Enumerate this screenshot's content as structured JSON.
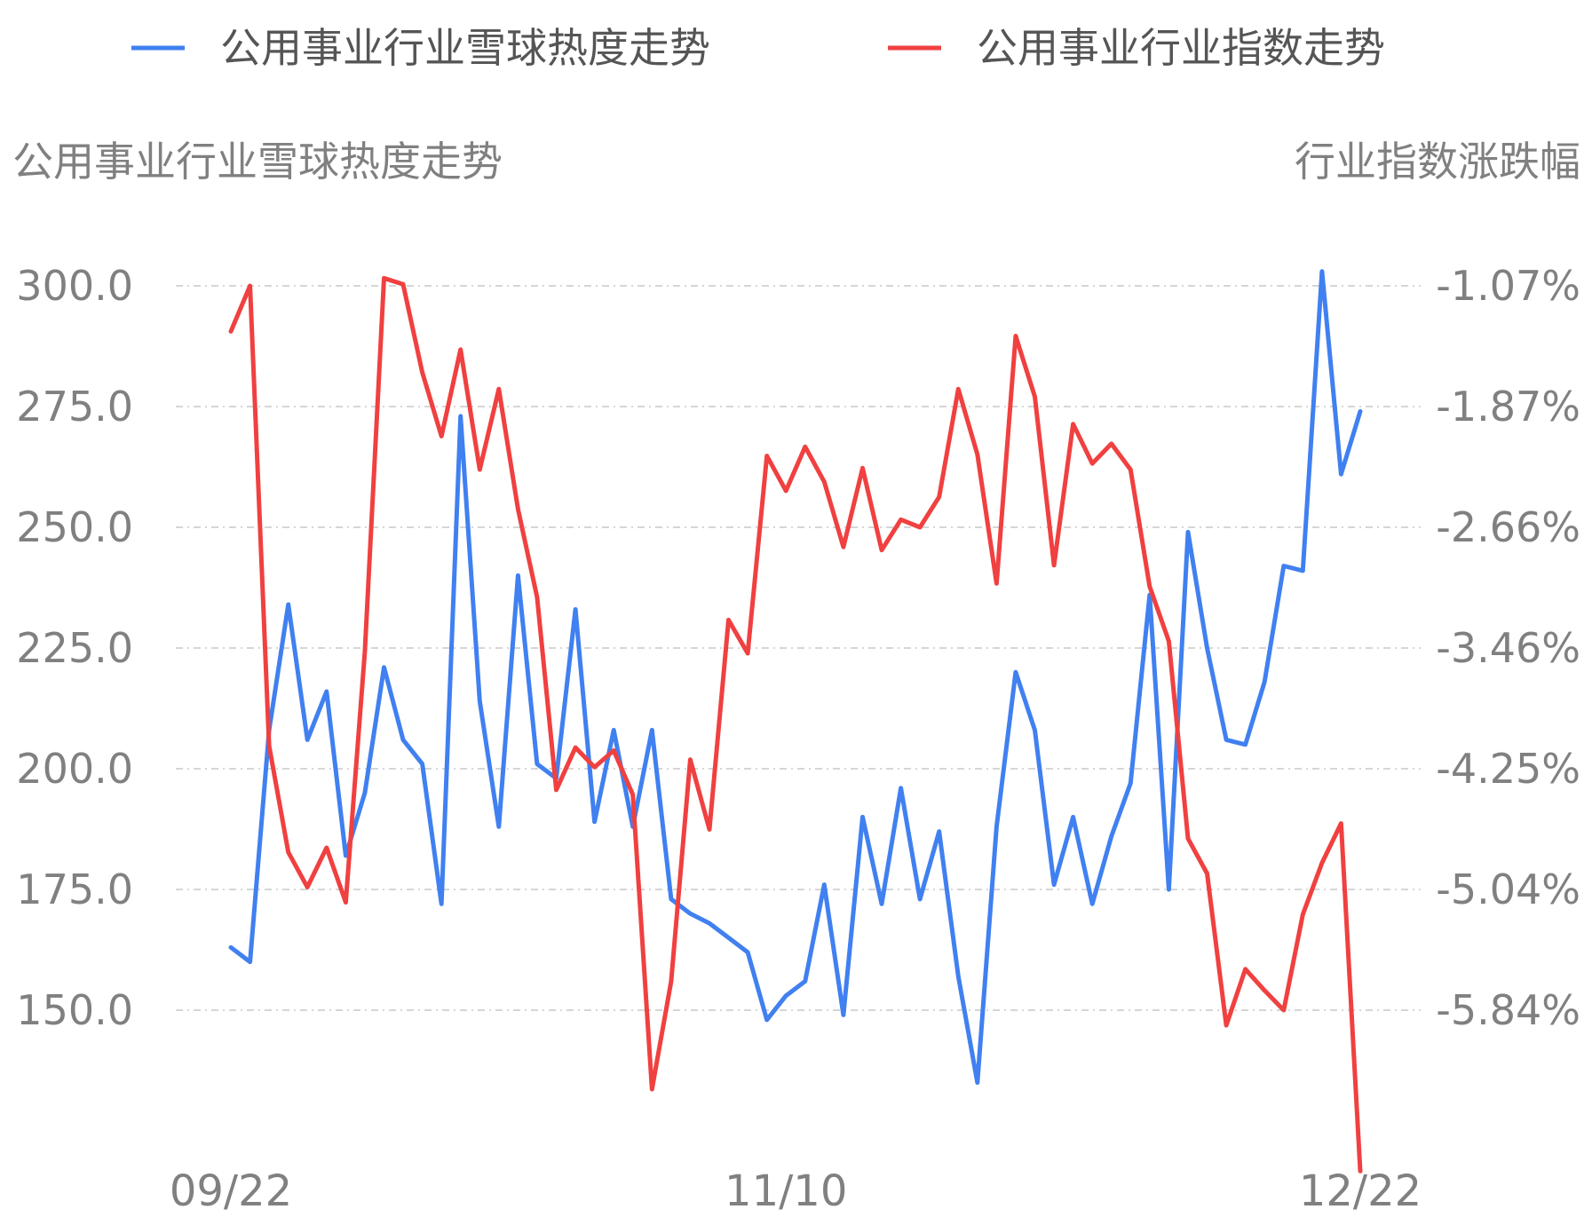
{
  "chart_data": {
    "type": "line",
    "legend_position": "top",
    "grid": true,
    "x_labels": [
      "09/22",
      "11/10",
      "12/22"
    ],
    "left_axis": {
      "title": "公用事业行业雪球热度走势",
      "ticks": [
        "300.0",
        "275.0",
        "250.0",
        "225.0",
        "200.0",
        "175.0",
        "150.0"
      ],
      "ylim": [
        150,
        300
      ]
    },
    "right_axis": {
      "title": "行业指数涨跌幅",
      "ticks": [
        "-1.07%",
        "-1.87%",
        "-2.66%",
        "-3.46%",
        "-4.25%",
        "-5.04%",
        "-5.84%"
      ],
      "ylim": [
        -5.84,
        -1.07
      ]
    },
    "series": [
      {
        "name": "公用事业行业雪球热度走势",
        "axis": "left",
        "color": "#4080F0",
        "values": [
          163,
          160,
          208,
          234,
          206,
          216,
          182,
          195,
          221,
          206,
          201,
          172,
          273,
          214,
          188,
          240,
          201,
          198,
          233,
          189,
          208,
          188,
          208,
          173,
          170,
          168,
          165,
          162,
          148,
          153,
          156,
          176,
          149,
          190,
          172,
          196,
          173,
          187,
          157,
          135,
          188,
          220,
          208,
          176,
          190,
          172,
          186,
          197,
          236,
          175,
          249,
          225,
          206,
          205,
          218,
          242,
          241,
          303,
          261,
          274
        ]
      },
      {
        "name": "公用事业行业指数走势",
        "axis": "right",
        "color": "#F04040",
        "values": [
          -1.37,
          -1.07,
          -4.1,
          -4.8,
          -5.03,
          -4.77,
          -5.13,
          -3.48,
          -1.02,
          -1.06,
          -1.64,
          -2.06,
          -1.49,
          -2.28,
          -1.75,
          -2.54,
          -3.12,
          -4.39,
          -4.11,
          -4.24,
          -4.13,
          -4.42,
          -6.36,
          -5.65,
          -4.19,
          -4.65,
          -3.27,
          -3.49,
          -2.19,
          -2.42,
          -2.13,
          -2.36,
          -2.79,
          -2.27,
          -2.81,
          -2.61,
          -2.66,
          -2.46,
          -1.75,
          -2.18,
          -3.03,
          -1.4,
          -1.8,
          -2.91,
          -1.98,
          -2.24,
          -2.11,
          -2.28,
          -3.05,
          -3.41,
          -4.71,
          -4.94,
          -5.94,
          -5.57,
          -5.71,
          -5.84,
          -5.21,
          -4.87,
          -4.61,
          -6.9
        ]
      }
    ]
  }
}
